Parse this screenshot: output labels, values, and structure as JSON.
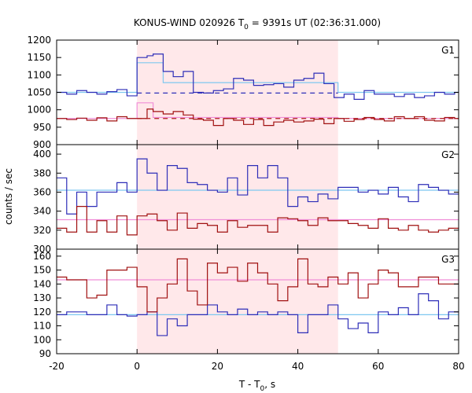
{
  "chart_data": {
    "type": "line",
    "title_main": "KONUS-WIND 020926 T",
    "title_sub": "0",
    "title_rest": " = 9391s UT (02:36:31.000)",
    "xlabel_main": "T - T",
    "xlabel_sub": "0",
    "xlabel_rest": ", s",
    "ylabel": "counts / sec",
    "xlim": [
      -20,
      80
    ],
    "x_ticks": [
      -20,
      0,
      20,
      40,
      60,
      80
    ],
    "shaded_interval": [
      0,
      50
    ],
    "colors": {
      "shade": "#ffe8ea",
      "series1": "#2e2eb8",
      "series2": "#a01010",
      "fit1": "#7ec8f0",
      "fit2": "#f08ed8",
      "baseline1": "#2e2eb8",
      "baseline2": "#b01a1a"
    },
    "panels": [
      {
        "label": "G1",
        "ylim": [
          900,
          1200
        ],
        "y_ticks": [
          900,
          950,
          1000,
          1050,
          1100,
          1150,
          1200
        ],
        "bin_edges": [
          -20,
          -17.5,
          -15,
          -12.5,
          -10,
          -7.5,
          -5,
          -2.5,
          0,
          2.5,
          4,
          6.5,
          9,
          11.5,
          14,
          16.5,
          19,
          21.5,
          24,
          26.5,
          29,
          31.5,
          34,
          36.5,
          39,
          41.5,
          44,
          46.5,
          49,
          51.5,
          54,
          56.5,
          59,
          61.5,
          64,
          66.5,
          69,
          71.5,
          74,
          76.5,
          79,
          80
        ],
        "series": [
          {
            "values": [
              1050,
              1045,
              1055,
              1050,
              1045,
              1052,
              1058,
              1040,
              1150,
              1155,
              1160,
              1110,
              1095,
              1110,
              1050,
              1048,
              1055,
              1060,
              1090,
              1085,
              1070,
              1072,
              1075,
              1065,
              1085,
              1090,
              1105,
              1075,
              1035,
              1045,
              1030,
              1055,
              1045,
              1045,
              1038,
              1045,
              1035,
              1040,
              1050,
              1045,
              1050
            ]
          },
          {
            "values": [
              975,
              972,
              976,
              970,
              977,
              968,
              980,
              975,
              975,
              1002,
              995,
              988,
              995,
              985,
              973,
              970,
              955,
              975,
              970,
              958,
              972,
              955,
              965,
              970,
              965,
              968,
              973,
              960,
              975,
              967,
              972,
              978,
              972,
              968,
              980,
              975,
              980,
              970,
              968,
              978,
              975
            ]
          }
        ],
        "fit_series1": [
          [
            -20,
            1050
          ],
          [
            0,
            1050
          ],
          [
            0,
            1135
          ],
          [
            6.5,
            1135
          ],
          [
            6.5,
            1078
          ],
          [
            50,
            1078
          ],
          [
            50,
            1050
          ],
          [
            80,
            1050
          ]
        ],
        "fit_series2": [
          [
            -20,
            975
          ],
          [
            0,
            975
          ],
          [
            0,
            1020
          ],
          [
            4,
            1020
          ],
          [
            4,
            978
          ],
          [
            50,
            978
          ],
          [
            50,
            975
          ],
          [
            80,
            975
          ]
        ],
        "baseline1": 1048,
        "baseline2": 975
      },
      {
        "label": "G2",
        "ylim": [
          300,
          410
        ],
        "y_ticks": [
          300,
          320,
          340,
          360,
          380,
          400
        ],
        "bin_edges": [
          -20,
          -17.5,
          -15,
          -12.5,
          -10,
          -7.5,
          -5,
          -2.5,
          0,
          2.5,
          5,
          7.5,
          10,
          12.5,
          15,
          17.5,
          20,
          22.5,
          25,
          27.5,
          30,
          32.5,
          35,
          37.5,
          40,
          42.5,
          45,
          47.5,
          50,
          52.5,
          55,
          57.5,
          60,
          62.5,
          65,
          67.5,
          70,
          72.5,
          75,
          77.5,
          80
        ],
        "series": [
          {
            "values": [
              375,
              337,
              360,
              345,
              360,
              360,
              370,
              360,
              395,
              380,
              362,
              388,
              385,
              370,
              368,
              362,
              360,
              375,
              357,
              388,
              375,
              388,
              375,
              345,
              355,
              350,
              358,
              353,
              365,
              365,
              360,
              362,
              358,
              365,
              355,
              350,
              368,
              365,
              362,
              358
            ]
          },
          {
            "values": [
              322,
              318,
              345,
              318,
              330,
              318,
              335,
              315,
              335,
              337,
              330,
              320,
              338,
              322,
              327,
              325,
              318,
              330,
              323,
              325,
              325,
              318,
              333,
              332,
              330,
              325,
              333,
              330,
              330,
              327,
              325,
              322,
              332,
              322,
              320,
              325,
              320,
              318,
              320,
              322
            ]
          }
        ],
        "fit1_level": 362,
        "fit2_level": 331
      },
      {
        "label": "G3",
        "ylim": [
          90,
          165
        ],
        "y_ticks": [
          90,
          100,
          110,
          120,
          130,
          140,
          150,
          160
        ],
        "bin_edges": [
          -20,
          -17.5,
          -15,
          -12.5,
          -10,
          -7.5,
          -5,
          -2.5,
          0,
          2.5,
          5,
          7.5,
          10,
          12.5,
          15,
          17.5,
          20,
          22.5,
          25,
          27.5,
          30,
          32.5,
          35,
          37.5,
          40,
          42.5,
          45,
          47.5,
          50,
          52.5,
          55,
          57.5,
          60,
          62.5,
          65,
          67.5,
          70,
          72.5,
          75,
          77.5,
          80
        ],
        "series": [
          {
            "values": [
              118,
              120,
              120,
              118,
              118,
              125,
              118,
              117,
              118,
              120,
              103,
              115,
              110,
              118,
              118,
              125,
              120,
              118,
              122,
              118,
              120,
              118,
              120,
              118,
              105,
              118,
              118,
              125,
              115,
              108,
              112,
              105,
              120,
              118,
              123,
              118,
              133,
              128,
              115,
              120
            ]
          },
          {
            "values": [
              145,
              143,
              143,
              130,
              132,
              150,
              150,
              152,
              138,
              120,
              130,
              140,
              158,
              135,
              125,
              155,
              148,
              152,
              142,
              155,
              148,
              140,
              128,
              138,
              158,
              140,
              138,
              145,
              140,
              148,
              130,
              140,
              150,
              148,
              138,
              138,
              145,
              145,
              140,
              140
            ]
          }
        ],
        "fit1_level": 118,
        "fit2_level": 143
      }
    ]
  }
}
